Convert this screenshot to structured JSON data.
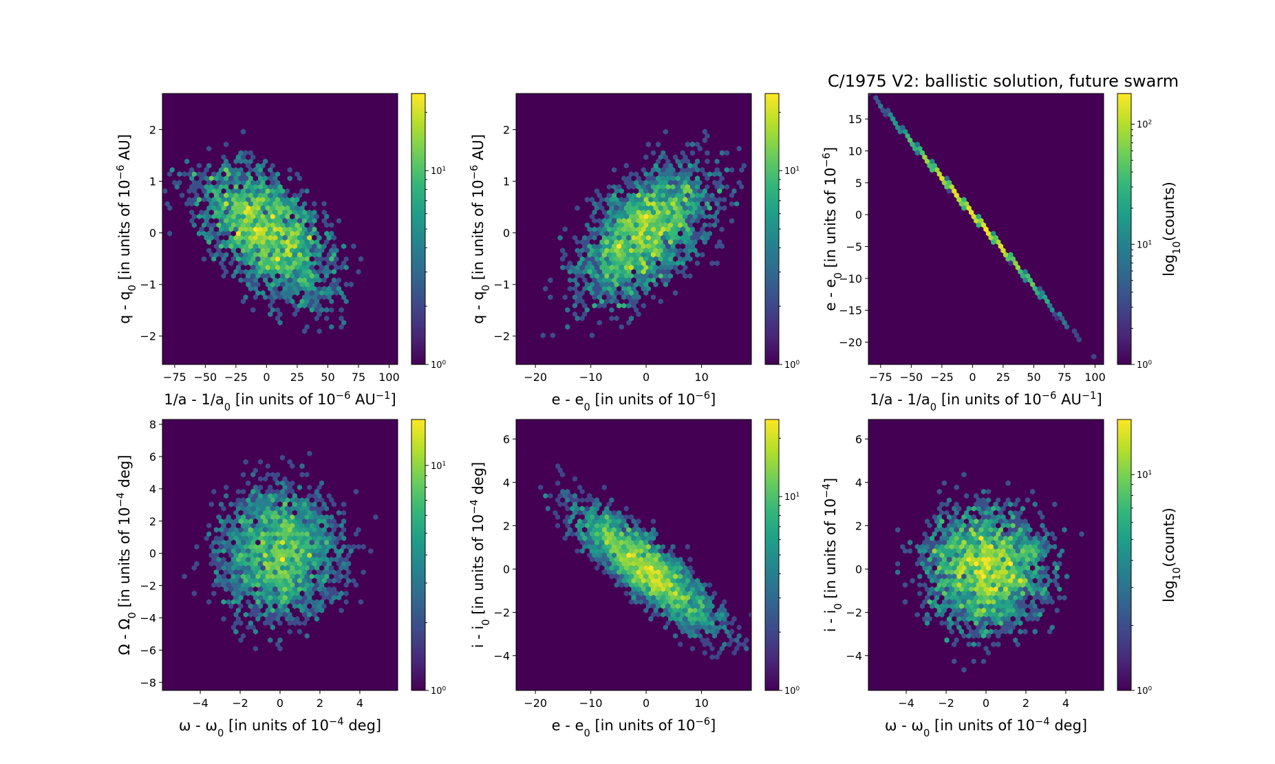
{
  "figure": {
    "title": "C/1975 V2:  ballistic solution, future swarm",
    "background": "#440154",
    "colormap": [
      "#440154",
      "#482878",
      "#3e4989",
      "#31688e",
      "#26828e",
      "#1f9e89",
      "#35b779",
      "#6ece58",
      "#b5de2b",
      "#fde725"
    ]
  },
  "chart_data": [
    {
      "id": "p1",
      "type": "hexbin",
      "xlabel": {
        "pre": "1/a - 1/a",
        "sub": "0",
        "mid": " [in units of 10",
        "sup": "−6",
        "post": " AU",
        "sup2": "−1",
        "end": "]"
      },
      "ylabel": {
        "pre": "q - q",
        "sub": "0",
        "mid": " [in units of 10",
        "sup": "−6",
        "post": " AU]"
      },
      "xlim": [
        -85,
        107
      ],
      "ylim": [
        -2.55,
        2.7
      ],
      "xticks": [
        -75,
        -50,
        -25,
        0,
        25,
        50,
        75,
        100
      ],
      "yticks": [
        -2,
        -1,
        0,
        1,
        2
      ],
      "distribution": {
        "mx": 0,
        "my": 0,
        "sx": 32,
        "sy": 0.75,
        "rho": -0.55,
        "n": 4000
      },
      "colorbar": {
        "min": 1,
        "max": 25,
        "major_ticks": [
          {
            "value": 1,
            "base": "10",
            "exp": "0"
          },
          {
            "value": 10,
            "base": "10",
            "exp": "1"
          }
        ],
        "label": ""
      }
    },
    {
      "id": "p2",
      "type": "hexbin",
      "xlabel": {
        "pre": "e - e",
        "sub": "0",
        "mid": " [in units of 10",
        "sup": "−6",
        "post": "]"
      },
      "ylabel": {
        "pre": "q - q",
        "sub": "0",
        "mid": " [in units of 10",
        "sup": "−6",
        "post": " AU]"
      },
      "xlim": [
        -23.5,
        19
      ],
      "ylim": [
        -2.55,
        2.7
      ],
      "xticks": [
        -20,
        -10,
        0,
        10
      ],
      "yticks": [
        -2,
        -1,
        0,
        1,
        2
      ],
      "distribution": {
        "mx": 0,
        "my": 0,
        "sx": 7,
        "sy": 0.75,
        "rho": 0.55,
        "n": 4000
      },
      "colorbar": {
        "min": 1,
        "max": 25,
        "major_ticks": [
          {
            "value": 1,
            "base": "10",
            "exp": "0"
          },
          {
            "value": 10,
            "base": "10",
            "exp": "1"
          }
        ],
        "label": ""
      }
    },
    {
      "id": "p3",
      "type": "hexbin",
      "xlabel": {
        "pre": "1/a - 1/a",
        "sub": "0",
        "mid": " [in units of 10",
        "sup": "−6",
        "post": " AU",
        "sup2": "−1",
        "end": "]"
      },
      "ylabel": {
        "pre": "e - e",
        "sub": "0",
        "mid": " [in units of 10",
        "sup": "−6",
        "post": "]"
      },
      "xlim": [
        -85,
        107
      ],
      "ylim": [
        -23.5,
        19
      ],
      "xticks": [
        -75,
        -50,
        -25,
        0,
        25,
        50,
        75,
        100
      ],
      "yticks": [
        -20,
        -15,
        -10,
        -5,
        0,
        5,
        10,
        15
      ],
      "line": {
        "x0": -80,
        "y0": 18.3,
        "x1": 80,
        "y1": -18.0
      },
      "distribution": {
        "mx": 0,
        "sx": 30,
        "n": 4000
      },
      "colorbar": {
        "min": 1,
        "max": 180,
        "major_ticks": [
          {
            "value": 1,
            "base": "10",
            "exp": "0"
          },
          {
            "value": 10,
            "base": "10",
            "exp": "1"
          },
          {
            "value": 100,
            "base": "10",
            "exp": "2"
          }
        ],
        "label": {
          "pre": "log",
          "sub": "10",
          "post": "(counts)"
        }
      }
    },
    {
      "id": "p4",
      "type": "hexbin",
      "xlabel": {
        "pre": "ω - ω",
        "sub": "0",
        "mid": " [in units of 10",
        "sup": "−4",
        "post": " deg]"
      },
      "ylabel": {
        "pre": "Ω - Ω",
        "sub": "0",
        "mid": " [in units of 10",
        "sup": "−4",
        "post": " deg]"
      },
      "xlim": [
        -5.9,
        5.9
      ],
      "ylim": [
        -8.5,
        8.3
      ],
      "xticks": [
        -4,
        -2,
        0,
        2,
        4
      ],
      "yticks": [
        -8,
        -6,
        -4,
        -2,
        0,
        2,
        4,
        6,
        8
      ],
      "distribution": {
        "mx": 0,
        "my": 0,
        "sx": 1.7,
        "sy": 2.3,
        "rho": 0.0,
        "n": 4000
      },
      "colorbar": {
        "min": 1,
        "max": 16,
        "major_ticks": [
          {
            "value": 1,
            "base": "10",
            "exp": "0"
          },
          {
            "value": 10,
            "base": "10",
            "exp": "1"
          }
        ],
        "label": ""
      }
    },
    {
      "id": "p5",
      "type": "hexbin",
      "xlabel": {
        "pre": "e - e",
        "sub": "0",
        "mid": " [in units of 10",
        "sup": "−6",
        "post": "]"
      },
      "ylabel": {
        "pre": "i - i",
        "sub": "0",
        "mid": " [in units of 10",
        "sup": "−4",
        "post": " deg]"
      },
      "xlim": [
        -23.5,
        19
      ],
      "ylim": [
        -5.6,
        6.9
      ],
      "xticks": [
        -20,
        -10,
        0,
        10
      ],
      "yticks": [
        -4,
        -2,
        0,
        2,
        4,
        6
      ],
      "distribution": {
        "mx": 0,
        "my": 0,
        "sx": 7,
        "sy": 1.6,
        "rho": -0.85,
        "n": 4000
      },
      "colorbar": {
        "min": 1,
        "max": 25,
        "major_ticks": [
          {
            "value": 1,
            "base": "10",
            "exp": "0"
          },
          {
            "value": 10,
            "base": "10",
            "exp": "1"
          }
        ],
        "label": ""
      }
    },
    {
      "id": "p6",
      "type": "hexbin",
      "xlabel": {
        "pre": "ω - ω",
        "sub": "0",
        "mid": " [in units of 10",
        "sup": "−4",
        "post": " deg]"
      },
      "ylabel": {
        "pre": "i - i",
        "sub": "0",
        "mid": " [in units of 10",
        "sup": "−4",
        "post": "]"
      },
      "xlim": [
        -5.9,
        5.9
      ],
      "ylim": [
        -5.6,
        6.9
      ],
      "xticks": [
        -4,
        -2,
        0,
        2,
        4
      ],
      "yticks": [
        -4,
        -2,
        0,
        2,
        4,
        6
      ],
      "distribution": {
        "mx": 0,
        "my": 0,
        "sx": 1.7,
        "sy": 1.6,
        "rho": 0.0,
        "n": 4000
      },
      "colorbar": {
        "min": 1,
        "max": 18,
        "major_ticks": [
          {
            "value": 1,
            "base": "10",
            "exp": "0"
          },
          {
            "value": 10,
            "base": "10",
            "exp": "1"
          }
        ],
        "label": {
          "pre": "log",
          "sub": "10",
          "post": "(counts)"
        }
      }
    }
  ]
}
